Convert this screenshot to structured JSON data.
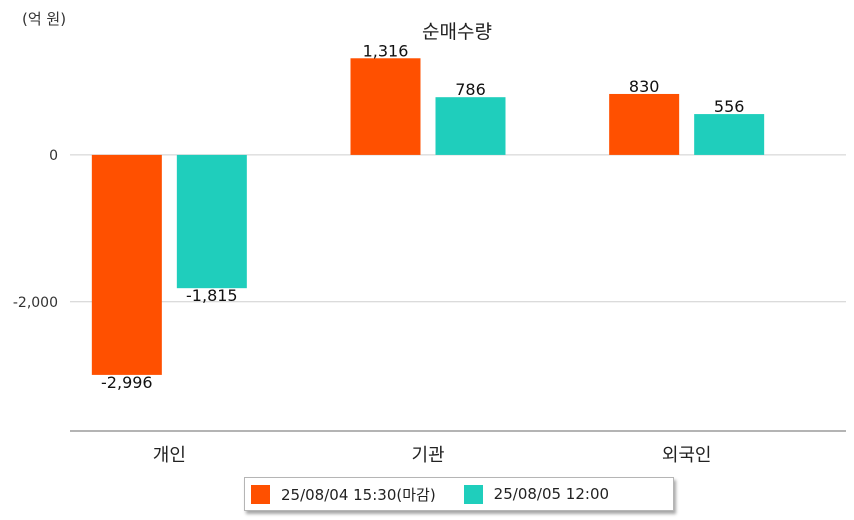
{
  "unit_label": "(억 원)",
  "chart_data": {
    "type": "bar",
    "title": "순매수량",
    "categories": [
      "개인",
      "기관",
      "외국인"
    ],
    "series": [
      {
        "name": "25/08/04 15:30(마감)",
        "color": "#ff5000",
        "values": [
          -2996,
          1316,
          830
        ],
        "labels": [
          "-2,996",
          "1,316",
          "830"
        ]
      },
      {
        "name": "25/08/05 12:00",
        "color": "#1fcebc",
        "values": [
          -1815,
          786,
          556
        ],
        "labels": [
          "-1,815",
          "786",
          "556"
        ]
      }
    ],
    "yticks": [
      {
        "value": 0,
        "label": "0"
      },
      {
        "value": -2000,
        "label": "-2,000"
      }
    ],
    "ylim": [
      -3760,
      1810
    ],
    "grid": true,
    "legend_position": "bottom"
  }
}
